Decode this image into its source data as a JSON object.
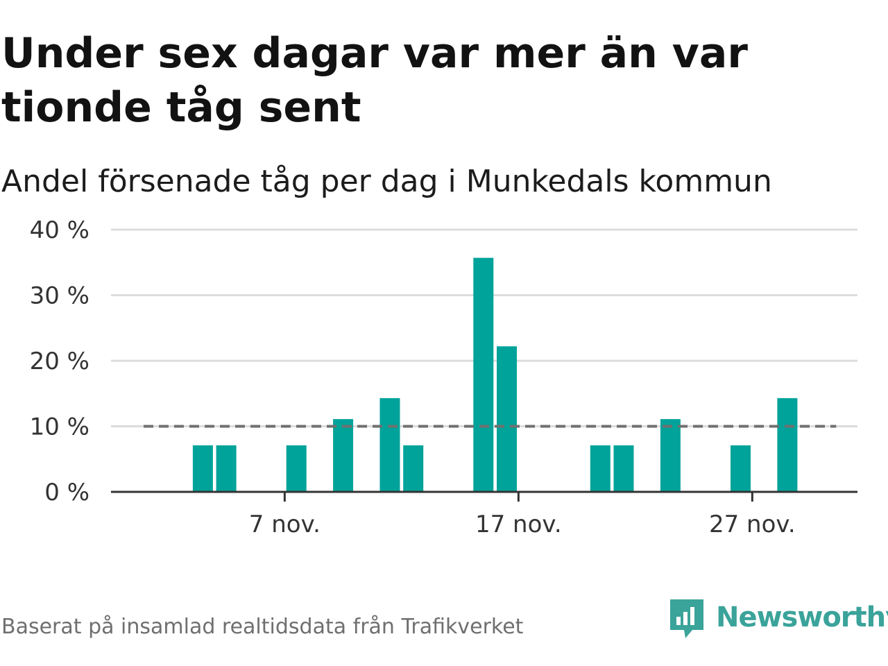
{
  "title": "Under sex dagar var mer än var tionde tåg sent",
  "subtitle": "Andel försenade tåg per dag i Munkedals kommun",
  "caption": "Baserat på insamlad realtidsdata från Trafikverket",
  "brand": {
    "name": "Newsworthy",
    "color": "#3aa39a"
  },
  "chart_data": {
    "type": "bar",
    "title": "Under sex dagar var mer än var tionde tåg sent",
    "subtitle": "Andel försenade tåg per dag i Munkedals kommun",
    "x": [
      "2021-11-01",
      "2021-11-02",
      "2021-11-03",
      "2021-11-04",
      "2021-11-05",
      "2021-11-06",
      "2021-11-07",
      "2021-11-08",
      "2021-11-09",
      "2021-11-10",
      "2021-11-11",
      "2021-11-12",
      "2021-11-13",
      "2021-11-14",
      "2021-11-15",
      "2021-11-16",
      "2021-11-17",
      "2021-11-18",
      "2021-11-19",
      "2021-11-20",
      "2021-11-21",
      "2021-11-22",
      "2021-11-23",
      "2021-11-24",
      "2021-11-25",
      "2021-11-26",
      "2021-11-27",
      "2021-11-28",
      "2021-11-29",
      "2021-11-30"
    ],
    "values": [
      0,
      0,
      7.1,
      7.1,
      0,
      0,
      7.1,
      0,
      11.1,
      0,
      14.3,
      7.1,
      0,
      0,
      35.7,
      22.2,
      0,
      0,
      0,
      7.1,
      7.1,
      0,
      11.1,
      0,
      0,
      7.1,
      0,
      14.3,
      0,
      0
    ],
    "reference_line": {
      "value": 10,
      "style": "dashed"
    },
    "ylim": [
      0,
      40
    ],
    "yticks": [
      0,
      10,
      20,
      30,
      40
    ],
    "ytick_labels": [
      "0 %",
      "10 %",
      "20 %",
      "30 %",
      "40 %"
    ],
    "xticks": [
      "2021-11-07",
      "2021-11-17",
      "2021-11-27"
    ],
    "xtick_labels": [
      "7 nov.",
      "17 nov.",
      "27 nov."
    ],
    "grid": true,
    "colors": {
      "bar": "#00a39a",
      "reference": "#707070",
      "grid": "#dcdcdc",
      "axis": "#333333"
    }
  }
}
